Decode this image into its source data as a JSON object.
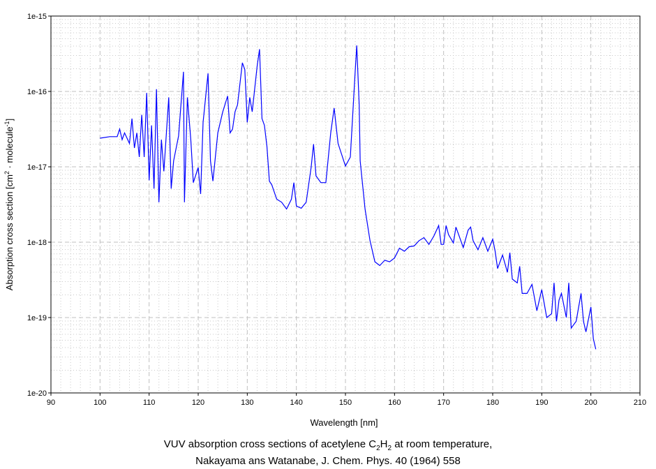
{
  "chart_data": {
    "type": "line",
    "title_line1_parts": [
      "VUV absorption cross sections of acetylene C",
      "2",
      "H",
      "2",
      " at room temperature,"
    ],
    "title_line2": "Nakayama ans Watanabe, J. Chem. Phys. 40 (1964) 558",
    "xlabel": "Wavelength [nm]",
    "ylabel_parts": [
      "Absorption cross section [cm",
      "2",
      " · molecule",
      "-1",
      "]"
    ],
    "xlim": [
      90,
      210
    ],
    "ylim": [
      1e-20,
      1e-15
    ],
    "yscale": "log",
    "xticks": [
      90,
      100,
      110,
      120,
      130,
      140,
      150,
      160,
      170,
      180,
      190,
      200,
      210
    ],
    "ytick_labels": [
      "1e-15",
      "1e-16",
      "1e-17",
      "1e-18",
      "1e-19",
      "1e-20"
    ],
    "grid": true,
    "series_color": "#0000ff",
    "series": [
      {
        "name": "C2H2",
        "x_nm": [
          100,
          102,
          103.5,
          104,
          104.5,
          105,
          106,
          106.5,
          107,
          107.5,
          108,
          108.5,
          109,
          109.5,
          110,
          110.5,
          111,
          111.5,
          112,
          112.5,
          113,
          114,
          114.5,
          115,
          116,
          117,
          117.2,
          117.8,
          118.5,
          119,
          120,
          120.5,
          121,
          122,
          122.5,
          123,
          124,
          125,
          126,
          126.5,
          127,
          127.5,
          128,
          129,
          129.5,
          130,
          130.5,
          131,
          132,
          132.5,
          133,
          133.5,
          134,
          134.5,
          135,
          136,
          137,
          138,
          139,
          139.5,
          140,
          141,
          142,
          143,
          143.5,
          144,
          145,
          146,
          147,
          147.7,
          148.5,
          150,
          151,
          152,
          152.3,
          152.8,
          153,
          154,
          155,
          156,
          157,
          158,
          159,
          160,
          161,
          162,
          163,
          164,
          165,
          166,
          167,
          168,
          169,
          169.5,
          170,
          170.5,
          171,
          172,
          172.5,
          173,
          174,
          175,
          175.5,
          176,
          177,
          178,
          179,
          180,
          180.5,
          181,
          182,
          183,
          183.5,
          184,
          185,
          185.5,
          186,
          187,
          188,
          189,
          190,
          191,
          192,
          192.5,
          193,
          193.5,
          194,
          195,
          195.5,
          196,
          197,
          198,
          198.5,
          199,
          200,
          200.5,
          201
        ],
        "log10_sigma": [
          -16.62,
          -16.6,
          -16.6,
          -16.5,
          -16.64,
          -16.55,
          -16.69,
          -16.36,
          -16.75,
          -16.55,
          -16.87,
          -16.31,
          -16.87,
          -16.02,
          -17.18,
          -16.45,
          -17.29,
          -15.97,
          -17.47,
          -16.64,
          -17.06,
          -16.08,
          -17.29,
          -16.92,
          -16.59,
          -15.74,
          -17.47,
          -16.08,
          -16.64,
          -17.21,
          -17.01,
          -17.36,
          -16.41,
          -15.76,
          -16.92,
          -17.19,
          -16.55,
          -16.27,
          -16.06,
          -16.55,
          -16.5,
          -16.27,
          -16.18,
          -15.62,
          -15.71,
          -16.41,
          -16.08,
          -16.27,
          -15.67,
          -15.44,
          -16.36,
          -16.45,
          -16.73,
          -17.19,
          -17.24,
          -17.43,
          -17.47,
          -17.56,
          -17.43,
          -17.21,
          -17.52,
          -17.55,
          -17.47,
          -17.01,
          -16.7,
          -17.12,
          -17.21,
          -17.21,
          -16.55,
          -16.22,
          -16.69,
          -16.99,
          -16.87,
          -15.71,
          -15.39,
          -16.18,
          -16.92,
          -17.56,
          -17.98,
          -18.26,
          -18.31,
          -18.24,
          -18.26,
          -18.21,
          -18.08,
          -18.12,
          -18.06,
          -18.05,
          -17.98,
          -17.94,
          -18.03,
          -17.92,
          -17.78,
          -18.03,
          -18.03,
          -17.78,
          -17.9,
          -18.01,
          -17.8,
          -17.89,
          -18.07,
          -17.84,
          -17.8,
          -17.98,
          -18.1,
          -17.94,
          -18.12,
          -17.96,
          -18.12,
          -18.35,
          -18.17,
          -18.4,
          -18.14,
          -18.49,
          -18.54,
          -18.32,
          -18.68,
          -18.68,
          -18.56,
          -18.91,
          -18.63,
          -19.0,
          -18.95,
          -18.54,
          -19.05,
          -18.77,
          -18.68,
          -19.0,
          -18.54,
          -19.14,
          -19.05,
          -18.68,
          -19.05,
          -19.19,
          -18.86,
          -19.28,
          -19.42
        ]
      }
    ]
  }
}
